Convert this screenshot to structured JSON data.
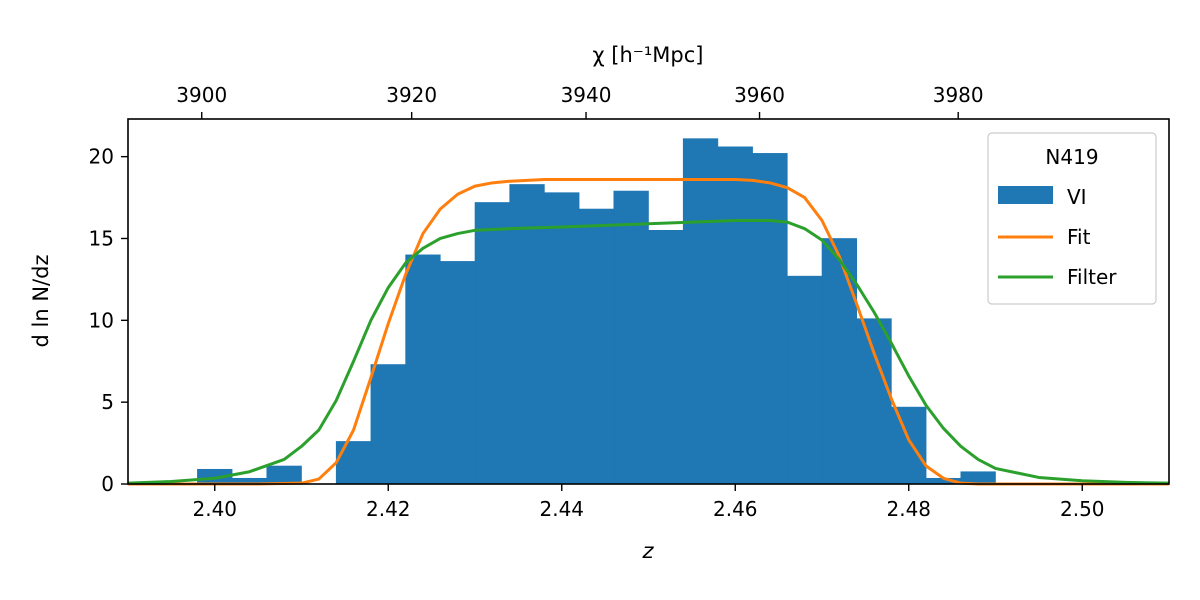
{
  "chart_data": {
    "type": "bar",
    "title": "",
    "xlabel": "z",
    "ylabel": "d ln N/dz",
    "top_xlabel": "χ   [h⁻¹Mpc]",
    "xlim": [
      2.39,
      2.51
    ],
    "ylim": [
      0,
      22.3
    ],
    "x_ticks": [
      2.4,
      2.42,
      2.44,
      2.46,
      2.48,
      2.5
    ],
    "x_tick_labels": [
      "2.40",
      "2.42",
      "2.44",
      "2.46",
      "2.48",
      "2.50"
    ],
    "y_ticks": [
      0,
      5,
      10,
      15,
      20
    ],
    "y_tick_labels": [
      "0",
      "5",
      "10",
      "15",
      "20"
    ],
    "top_axis": {
      "ticks": [
        {
          "z": 2.3985,
          "label": "3900"
        },
        {
          "z": 2.4227,
          "label": "3920"
        },
        {
          "z": 2.4428,
          "label": "3940"
        },
        {
          "z": 2.4628,
          "label": "3960"
        },
        {
          "z": 2.4857,
          "label": "3980"
        }
      ]
    },
    "legend": {
      "title": "N419",
      "position": "top-right",
      "entries": [
        {
          "label": "VI",
          "kind": "patch",
          "color": "#1f77b4"
        },
        {
          "label": "Fit",
          "kind": "line",
          "color": "#ff7f0e"
        },
        {
          "label": "Filter",
          "kind": "line",
          "color": "#2ca02c"
        }
      ]
    },
    "histogram": {
      "name": "VI",
      "color": "#1f77b4",
      "bins": [
        {
          "x0": 2.398,
          "x1": 2.402,
          "value": 0.9
        },
        {
          "x0": 2.402,
          "x1": 2.406,
          "value": 0.35
        },
        {
          "x0": 2.406,
          "x1": 2.41,
          "value": 1.1
        },
        {
          "x0": 2.41,
          "x1": 2.414,
          "value": 0
        },
        {
          "x0": 2.414,
          "x1": 2.418,
          "value": 2.6
        },
        {
          "x0": 2.418,
          "x1": 2.422,
          "value": 7.3
        },
        {
          "x0": 2.422,
          "x1": 2.426,
          "value": 14.0
        },
        {
          "x0": 2.426,
          "x1": 2.43,
          "value": 13.6
        },
        {
          "x0": 2.43,
          "x1": 2.434,
          "value": 17.2
        },
        {
          "x0": 2.434,
          "x1": 2.438,
          "value": 18.3
        },
        {
          "x0": 2.438,
          "x1": 2.442,
          "value": 17.8
        },
        {
          "x0": 2.442,
          "x1": 2.446,
          "value": 16.8
        },
        {
          "x0": 2.446,
          "x1": 2.45,
          "value": 17.9
        },
        {
          "x0": 2.45,
          "x1": 2.454,
          "value": 15.5
        },
        {
          "x0": 2.454,
          "x1": 2.458,
          "value": 21.1
        },
        {
          "x0": 2.458,
          "x1": 2.462,
          "value": 20.6
        },
        {
          "x0": 2.462,
          "x1": 2.466,
          "value": 20.2
        },
        {
          "x0": 2.466,
          "x1": 2.47,
          "value": 12.7
        },
        {
          "x0": 2.47,
          "x1": 2.474,
          "value": 15.0
        },
        {
          "x0": 2.474,
          "x1": 2.478,
          "value": 10.1
        },
        {
          "x0": 2.478,
          "x1": 2.482,
          "value": 4.7
        },
        {
          "x0": 2.482,
          "x1": 2.486,
          "value": 0.35
        },
        {
          "x0": 2.486,
          "x1": 2.49,
          "value": 0.75
        }
      ]
    },
    "series": [
      {
        "name": "Fit",
        "color": "#ff7f0e",
        "x": [
          2.39,
          2.405,
          2.41,
          2.412,
          2.414,
          2.416,
          2.418,
          2.42,
          2.422,
          2.424,
          2.426,
          2.428,
          2.43,
          2.432,
          2.434,
          2.436,
          2.438,
          2.44,
          2.445,
          2.45,
          2.455,
          2.46,
          2.462,
          2.464,
          2.466,
          2.468,
          2.47,
          2.472,
          2.474,
          2.476,
          2.478,
          2.48,
          2.482,
          2.484,
          2.486,
          2.488,
          2.49,
          2.51
        ],
        "y": [
          0,
          0,
          0.05,
          0.3,
          1.3,
          3.3,
          6.5,
          9.8,
          12.8,
          15.3,
          16.8,
          17.7,
          18.2,
          18.4,
          18.5,
          18.55,
          18.6,
          18.6,
          18.6,
          18.6,
          18.6,
          18.6,
          18.55,
          18.4,
          18.1,
          17.5,
          16.1,
          13.9,
          11.0,
          8.0,
          5.2,
          2.7,
          1.1,
          0.35,
          0.05,
          0,
          0,
          0
        ]
      },
      {
        "name": "Filter",
        "color": "#2ca02c",
        "x": [
          2.39,
          2.395,
          2.4,
          2.404,
          2.408,
          2.41,
          2.412,
          2.414,
          2.416,
          2.418,
          2.42,
          2.422,
          2.424,
          2.426,
          2.428,
          2.43,
          2.434,
          2.44,
          2.445,
          2.45,
          2.455,
          2.46,
          2.464,
          2.466,
          2.468,
          2.47,
          2.472,
          2.474,
          2.476,
          2.478,
          2.48,
          2.482,
          2.484,
          2.486,
          2.488,
          2.49,
          2.495,
          2.5,
          2.505,
          2.51
        ],
        "y": [
          0.05,
          0.15,
          0.35,
          0.75,
          1.5,
          2.3,
          3.3,
          5.1,
          7.5,
          10.0,
          12.0,
          13.5,
          14.4,
          15.0,
          15.3,
          15.5,
          15.6,
          15.7,
          15.8,
          15.9,
          16.0,
          16.1,
          16.1,
          16.0,
          15.6,
          14.9,
          13.7,
          12.2,
          10.5,
          8.6,
          6.6,
          4.8,
          3.4,
          2.3,
          1.5,
          0.95,
          0.4,
          0.2,
          0.1,
          0.05
        ]
      }
    ]
  }
}
